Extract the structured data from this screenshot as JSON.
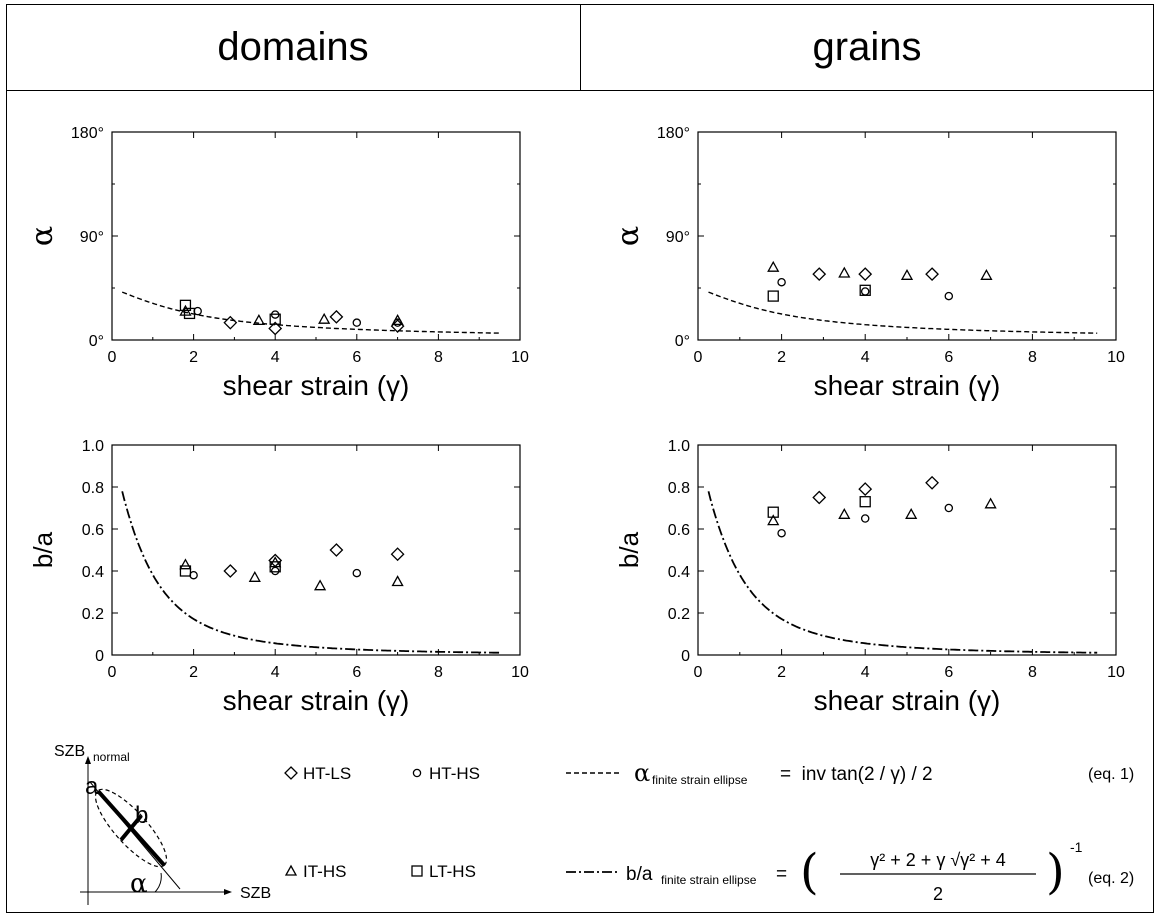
{
  "headers": {
    "left": "domains",
    "right": "grains"
  },
  "chart_data": [
    {
      "id": "domains-alpha",
      "type": "scatter",
      "xlabel": "shear strain (γ)",
      "ylabel": "α",
      "xlim": [
        0,
        10
      ],
      "ylim": [
        0,
        180
      ],
      "xticks": [
        "0",
        "2",
        "4",
        "6",
        "8",
        "10"
      ],
      "yticks": [
        "0°",
        "90°",
        "180°"
      ],
      "series": [
        {
          "name": "HT-LS",
          "marker": "diamond",
          "points": [
            [
              2.9,
              15
            ],
            [
              4.0,
              10
            ],
            [
              5.5,
              20
            ],
            [
              7.0,
              12
            ]
          ]
        },
        {
          "name": "HT-HS",
          "marker": "circle",
          "points": [
            [
              2.1,
              25
            ],
            [
              4.0,
              22
            ],
            [
              6.0,
              15
            ],
            [
              7.0,
              15
            ]
          ]
        },
        {
          "name": "IT-HS",
          "marker": "triangle",
          "points": [
            [
              1.8,
              25
            ],
            [
              3.6,
              17
            ],
            [
              5.2,
              18
            ],
            [
              7.0,
              17
            ]
          ]
        },
        {
          "name": "LT-HS",
          "marker": "square",
          "points": [
            [
              1.8,
              30
            ],
            [
              1.9,
              23
            ],
            [
              4.0,
              18
            ]
          ]
        }
      ],
      "curve": {
        "style": "dashed",
        "formula": "eq1"
      }
    },
    {
      "id": "grains-alpha",
      "type": "scatter",
      "xlabel": "shear strain (γ)",
      "ylabel": "α",
      "xlim": [
        0,
        10
      ],
      "ylim": [
        0,
        180
      ],
      "xticks": [
        "0",
        "2",
        "4",
        "6",
        "8",
        "10"
      ],
      "yticks": [
        "0°",
        "90°",
        "180°"
      ],
      "series": [
        {
          "name": "HT-LS",
          "marker": "diamond",
          "points": [
            [
              2.9,
              57
            ],
            [
              4.0,
              57
            ],
            [
              5.6,
              57
            ]
          ]
        },
        {
          "name": "HT-HS",
          "marker": "circle",
          "points": [
            [
              2.0,
              50
            ],
            [
              4.0,
              42
            ],
            [
              6.0,
              38
            ]
          ]
        },
        {
          "name": "IT-HS",
          "marker": "triangle",
          "points": [
            [
              1.8,
              63
            ],
            [
              3.5,
              58
            ],
            [
              5.0,
              56
            ],
            [
              6.9,
              56
            ]
          ]
        },
        {
          "name": "LT-HS",
          "marker": "square",
          "points": [
            [
              1.8,
              38
            ],
            [
              4.0,
              43
            ]
          ]
        }
      ],
      "curve": {
        "style": "dashed",
        "formula": "eq1"
      }
    },
    {
      "id": "domains-ba",
      "type": "scatter",
      "xlabel": "shear strain (γ)",
      "ylabel": "b/a",
      "xlim": [
        0,
        10
      ],
      "ylim": [
        0,
        1.0
      ],
      "xticks": [
        "0",
        "2",
        "4",
        "6",
        "8",
        "10"
      ],
      "yticks": [
        "0",
        "0.2",
        "0.4",
        "0.6",
        "0.8",
        "1.0"
      ],
      "series": [
        {
          "name": "HT-LS",
          "marker": "diamond",
          "points": [
            [
              2.9,
              0.4
            ],
            [
              4.0,
              0.45
            ],
            [
              5.5,
              0.5
            ],
            [
              7.0,
              0.48
            ]
          ]
        },
        {
          "name": "HT-HS",
          "marker": "circle",
          "points": [
            [
              2.0,
              0.38
            ],
            [
              4.0,
              0.4
            ],
            [
              6.0,
              0.39
            ]
          ]
        },
        {
          "name": "IT-HS",
          "marker": "triangle",
          "points": [
            [
              1.8,
              0.43
            ],
            [
              3.5,
              0.37
            ],
            [
              4.0,
              0.44
            ],
            [
              5.1,
              0.33
            ],
            [
              7.0,
              0.35
            ]
          ]
        },
        {
          "name": "LT-HS",
          "marker": "square",
          "points": [
            [
              1.8,
              0.4
            ],
            [
              4.0,
              0.42
            ]
          ]
        }
      ],
      "curve": {
        "style": "dashdot",
        "formula": "eq2"
      }
    },
    {
      "id": "grains-ba",
      "type": "scatter",
      "xlabel": "shear strain (γ)",
      "ylabel": "b/a",
      "xlim": [
        0,
        10
      ],
      "ylim": [
        0,
        1.0
      ],
      "xticks": [
        "0",
        "2",
        "4",
        "6",
        "8",
        "10"
      ],
      "yticks": [
        "0",
        "0.2",
        "0.4",
        "0.6",
        "0.8",
        "1.0"
      ],
      "series": [
        {
          "name": "HT-LS",
          "marker": "diamond",
          "points": [
            [
              2.9,
              0.75
            ],
            [
              4.0,
              0.79
            ],
            [
              5.6,
              0.82
            ]
          ]
        },
        {
          "name": "HT-HS",
          "marker": "circle",
          "points": [
            [
              2.0,
              0.58
            ],
            [
              4.0,
              0.65
            ],
            [
              6.0,
              0.7
            ]
          ]
        },
        {
          "name": "IT-HS",
          "marker": "triangle",
          "points": [
            [
              1.8,
              0.64
            ],
            [
              3.5,
              0.67
            ],
            [
              5.1,
              0.67
            ],
            [
              7.0,
              0.72
            ]
          ]
        },
        {
          "name": "LT-HS",
          "marker": "square",
          "points": [
            [
              1.8,
              0.68
            ],
            [
              4.0,
              0.73
            ]
          ]
        }
      ],
      "curve": {
        "style": "dashdot",
        "formula": "eq2"
      }
    }
  ],
  "legend": {
    "markers": [
      {
        "marker": "diamond",
        "label": "HT-LS"
      },
      {
        "marker": "circle",
        "label": "HT-HS"
      },
      {
        "marker": "triangle",
        "label": "IT-HS"
      },
      {
        "marker": "square",
        "label": "LT-HS"
      }
    ],
    "eq1": {
      "lhs": "α",
      "sub": "finite strain ellipse",
      "rhs": "=  inv tan(2 / γ) / 2",
      "tag": "(eq. 1)"
    },
    "eq2": {
      "lhs": "b/a",
      "sub": "finite strain ellipse",
      "rhs": "=",
      "numerator": "γ² + 2 + γ √γ² + 4",
      "denominator": "2",
      "exponent": "-1",
      "tag": "(eq. 2)"
    }
  },
  "sketch": {
    "y_axis_label": "SZB",
    "y_axis_sub": "normal",
    "x_axis_label": "SZB",
    "label_a": "a",
    "label_b": "b",
    "label_alpha": "α"
  }
}
